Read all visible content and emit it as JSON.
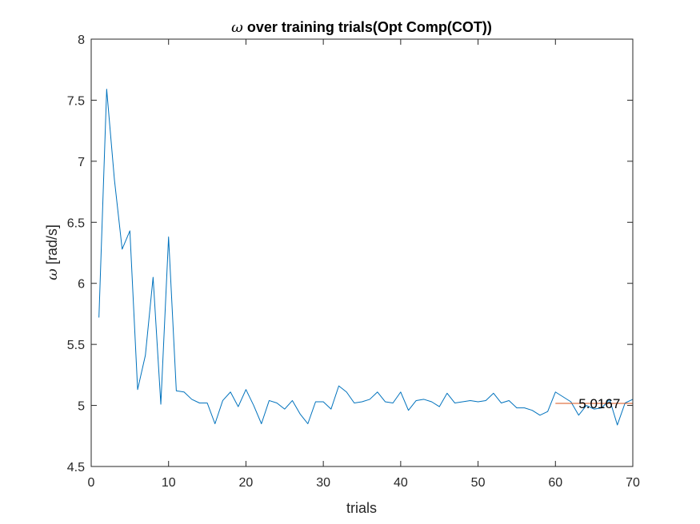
{
  "chart_data": {
    "type": "line",
    "title_symbol": "ω",
    "title_text": " over training trials(Opt Comp(COT))",
    "xlabel": "trials",
    "ylabel_symbol": "ω",
    "ylabel_text": " [rad/s]",
    "xlim": [
      0,
      70
    ],
    "ylim": [
      4.5,
      8
    ],
    "xticks": [
      0,
      10,
      20,
      30,
      40,
      50,
      60,
      70
    ],
    "yticks": [
      4.5,
      5,
      5.5,
      6,
      6.5,
      7,
      7.5,
      8
    ],
    "xtick_labels": [
      "0",
      "10",
      "20",
      "30",
      "40",
      "50",
      "60",
      "70"
    ],
    "ytick_labels": [
      "4.5",
      "5",
      "5.5",
      "6",
      "6.5",
      "7",
      "7.5",
      "8"
    ],
    "grid": false,
    "series": [
      {
        "color": "#0072BD",
        "x": [
          1,
          2,
          3,
          4,
          5,
          6,
          7,
          8,
          9,
          10,
          11,
          12,
          13,
          14,
          15,
          16,
          17,
          18,
          19,
          20,
          21,
          22,
          23,
          24,
          25,
          26,
          27,
          28,
          29,
          30,
          31,
          32,
          33,
          34,
          35,
          36,
          37,
          38,
          39,
          40,
          41,
          42,
          43,
          44,
          45,
          46,
          47,
          48,
          49,
          50,
          51,
          52,
          53,
          54,
          55,
          56,
          57,
          58,
          59,
          60,
          61,
          62,
          63,
          64,
          65,
          66,
          67,
          68,
          69,
          70
        ],
        "y": [
          5.72,
          7.59,
          6.85,
          6.28,
          6.43,
          5.13,
          5.41,
          6.05,
          5.01,
          6.38,
          5.12,
          5.11,
          5.05,
          5.02,
          5.02,
          4.85,
          5.04,
          5.11,
          4.99,
          5.13,
          5.0,
          4.85,
          5.04,
          5.02,
          4.97,
          5.04,
          4.93,
          4.85,
          5.03,
          5.03,
          4.97,
          5.16,
          5.11,
          5.02,
          5.03,
          5.05,
          5.11,
          5.03,
          5.02,
          5.11,
          4.96,
          5.04,
          5.05,
          5.03,
          4.99,
          5.1,
          5.02,
          5.03,
          5.04,
          5.03,
          5.04,
          5.1,
          5.02,
          5.04,
          4.98,
          4.98,
          4.96,
          4.92,
          4.95,
          5.11,
          5.07,
          5.03,
          4.92,
          5.0,
          4.97,
          4.98,
          5.05,
          4.84,
          5.02,
          5.05
        ]
      },
      {
        "color": "#D95319",
        "x": [
          60,
          70
        ],
        "y": [
          5.0167,
          5.0167
        ]
      }
    ],
    "annotation": {
      "text": "5.0167",
      "x": 63,
      "y": 5.0167
    }
  }
}
